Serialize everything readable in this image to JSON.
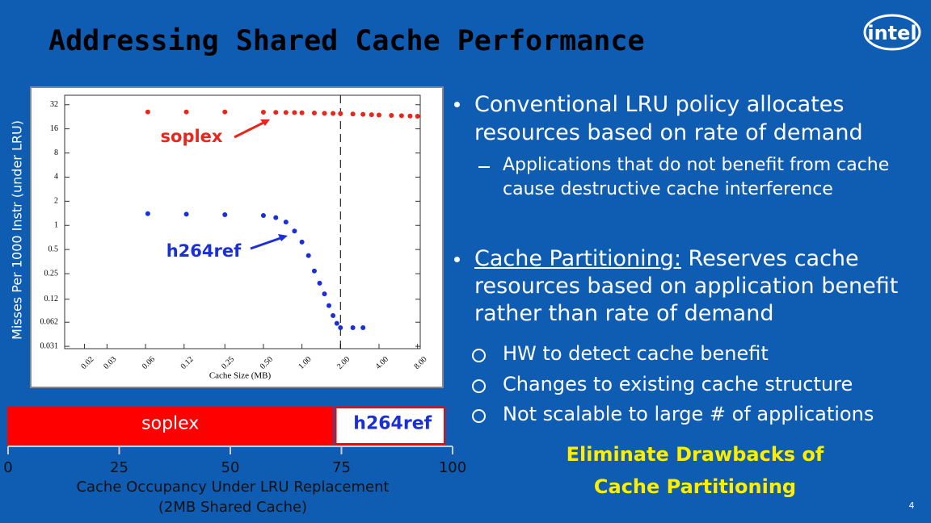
{
  "title": "Addressing Shared Cache Performance",
  "logo": "intel",
  "page_number": "4",
  "bullets": [
    {
      "text": "Conventional LRU policy allocates resources based on rate of demand",
      "sub": [
        "Applications that do not benefit from cache cause destructive cache interference"
      ]
    },
    {
      "lead": "Cache Partitioning:",
      "text": "Reserves cache resources based on application benefit rather than rate of demand",
      "items": [
        "HW to detect cache benefit",
        "Changes to existing cache structure",
        "Not scalable to large # of applications"
      ]
    }
  ],
  "callout": [
    "Eliminate Drawbacks of",
    "Cache Partitioning"
  ],
  "chart_data": [
    {
      "type": "scatter",
      "ylabel": "Misses Per 1000 Instr (under LRU)",
      "xlabel": "Cache Size (MB)",
      "log_x": true,
      "log_y": true,
      "xlim": [
        0.014,
        8.4
      ],
      "ylim": [
        0.029,
        42
      ],
      "xticks": [
        {
          "value": 0.02,
          "label": "0.02"
        },
        {
          "value": 0.03,
          "label": "0.03"
        },
        {
          "value": 0.06,
          "label": "0.06"
        },
        {
          "value": 0.12,
          "label": "0.12"
        },
        {
          "value": 0.25,
          "label": "0.25"
        },
        {
          "value": 0.5,
          "label": "0.50"
        },
        {
          "value": 1,
          "label": "1.00"
        },
        {
          "value": 2,
          "label": "2.00"
        },
        {
          "value": 4,
          "label": "4.00"
        },
        {
          "value": 8,
          "label": "8.00"
        }
      ],
      "yticks": [
        32,
        16,
        8,
        4,
        2,
        1,
        0.5,
        0.25,
        0.12,
        0.062,
        0.031
      ],
      "vline": 2,
      "series": [
        {
          "name": "soplex",
          "color": "#e8261c",
          "x": [
            0.0625,
            0.125,
            0.25,
            0.5,
            0.625,
            0.75,
            0.875,
            1,
            1.25,
            1.5,
            1.75,
            2,
            2.5,
            3,
            3.5,
            4,
            5,
            6,
            7,
            8
          ],
          "values": [
            26,
            26,
            26,
            25.8,
            25.7,
            25.6,
            25.5,
            25.4,
            25.2,
            25,
            24.9,
            24.8,
            24.5,
            24.3,
            24,
            23.8,
            23.5,
            23.3,
            23.1,
            23
          ]
        },
        {
          "name": "h264ref",
          "color": "#1a2fd8",
          "x": [
            0.0625,
            0.125,
            0.25,
            0.5,
            0.625,
            0.75,
            0.875,
            1,
            1.125,
            1.25,
            1.375,
            1.5,
            1.625,
            1.75,
            1.875,
            2,
            2.5,
            3
          ],
          "values": [
            1.4,
            1.38,
            1.36,
            1.33,
            1.25,
            1.1,
            0.85,
            0.62,
            0.42,
            0.27,
            0.19,
            0.14,
            0.1,
            0.075,
            0.06,
            0.053,
            0.053,
            0.053
          ]
        }
      ]
    },
    {
      "type": "bar",
      "orientation": "horizontal",
      "stacked": true,
      "xlabel": [
        "Cache Occupancy Under LRU Replacement",
        "(2MB Shared Cache)"
      ],
      "xlim": [
        0,
        100
      ],
      "xticks": [
        0,
        25,
        50,
        75,
        100
      ],
      "series": [
        {
          "name": "soplex",
          "color": "#ff0000",
          "text_color": "#ffffff",
          "values": [
            73
          ]
        },
        {
          "name": "h264ref",
          "color": "#ffffff",
          "text_color": "#1a2fd8",
          "values": [
            27
          ]
        }
      ]
    }
  ]
}
